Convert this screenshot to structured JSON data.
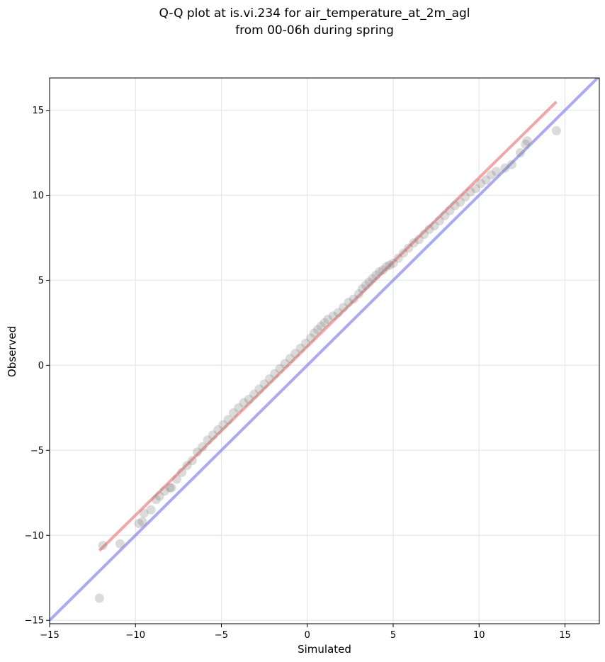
{
  "chart_data": {
    "type": "scatter",
    "title_line1": "Q-Q plot at is.vi.234 for air_temperature_at_2m_agl",
    "title_line2": "from 00-06h during spring",
    "xlabel": "Simulated",
    "ylabel": "Observed",
    "xlim": [
      -15,
      17
    ],
    "ylim": [
      -15.2,
      16.9
    ],
    "xticks": [
      -15,
      -10,
      -5,
      0,
      5,
      10,
      15
    ],
    "yticks": [
      -15,
      -10,
      -5,
      0,
      5,
      10,
      15
    ],
    "xtick_labels": [
      "−15",
      "−10",
      "−5",
      "0",
      "5",
      "10",
      "15"
    ],
    "ytick_labels": [
      "−15",
      "−10",
      "−5",
      "0",
      "5",
      "10",
      "15"
    ],
    "grid": true,
    "colors": {
      "points": "#7f7f7f",
      "fit_line": "#f08080",
      "identity_line": "#8c8cf0",
      "grid": "#e6e6e6"
    },
    "fit_line": {
      "x": [
        -12.1,
        14.5
      ],
      "y": [
        -10.9,
        15.5
      ]
    },
    "identity_line": {
      "x": [
        -15,
        17
      ],
      "y": [
        -15,
        17
      ]
    },
    "points": {
      "x": [
        -12.1,
        -11.9,
        -10.9,
        -9.8,
        -9.6,
        -9.5,
        -9.1,
        -8.8,
        -8.6,
        -8.3,
        -8.0,
        -7.9,
        -7.6,
        -7.3,
        -7.0,
        -6.7,
        -6.4,
        -6.1,
        -5.8,
        -5.5,
        -5.2,
        -4.9,
        -4.6,
        -4.3,
        -4.0,
        -3.7,
        -3.4,
        -3.1,
        -2.8,
        -2.5,
        -2.2,
        -1.9,
        -1.6,
        -1.3,
        -1.0,
        -0.7,
        -0.4,
        -0.1,
        0.2,
        0.4,
        0.6,
        0.8,
        1.0,
        1.2,
        1.5,
        1.8,
        2.1,
        2.4,
        2.7,
        3.0,
        3.2,
        3.4,
        3.6,
        3.8,
        4.0,
        4.2,
        4.4,
        4.6,
        4.8,
        5.0,
        5.3,
        5.6,
        5.9,
        6.2,
        6.5,
        6.8,
        7.1,
        7.4,
        7.7,
        8.0,
        8.3,
        8.6,
        8.9,
        9.2,
        9.5,
        9.8,
        10.1,
        10.4,
        10.7,
        11.0,
        11.5,
        11.9,
        12.4,
        12.7,
        12.8,
        14.5
      ],
      "y": [
        -13.7,
        -10.6,
        -10.5,
        -9.3,
        -9.2,
        -8.7,
        -8.5,
        -7.9,
        -7.7,
        -7.4,
        -7.2,
        -7.2,
        -6.7,
        -6.3,
        -5.9,
        -5.6,
        -5.1,
        -4.8,
        -4.4,
        -4.1,
        -3.8,
        -3.5,
        -3.2,
        -2.8,
        -2.5,
        -2.2,
        -2.0,
        -1.7,
        -1.4,
        -1.1,
        -0.8,
        -0.5,
        -0.2,
        0.1,
        0.4,
        0.7,
        1.0,
        1.3,
        1.6,
        1.9,
        2.1,
        2.3,
        2.5,
        2.7,
        2.9,
        3.1,
        3.4,
        3.7,
        3.9,
        4.2,
        4.5,
        4.7,
        4.9,
        5.1,
        5.3,
        5.5,
        5.6,
        5.8,
        5.9,
        6.0,
        6.3,
        6.6,
        6.9,
        7.2,
        7.4,
        7.7,
        8.0,
        8.2,
        8.5,
        8.8,
        9.1,
        9.4,
        9.6,
        9.9,
        10.2,
        10.4,
        10.7,
        10.9,
        11.2,
        11.4,
        11.6,
        11.8,
        12.5,
        13.0,
        13.2,
        13.8
      ]
    }
  }
}
